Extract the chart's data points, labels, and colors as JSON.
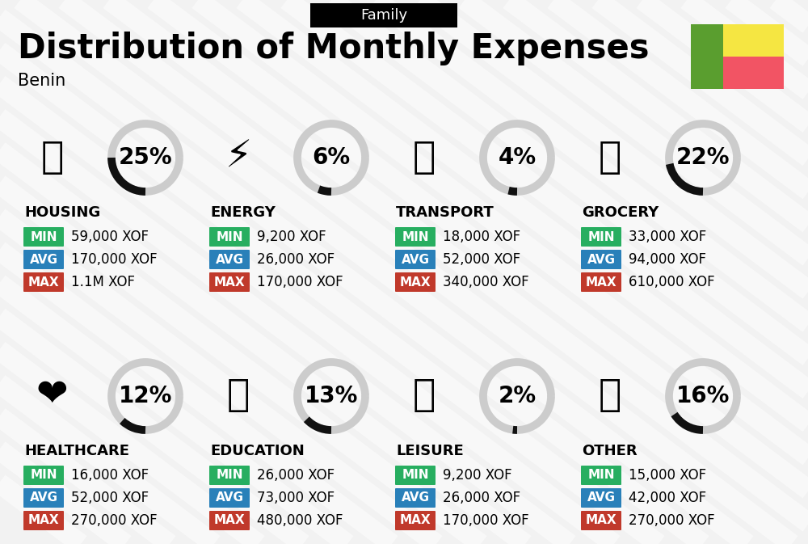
{
  "title": "Distribution of Monthly Expenses",
  "subtitle": "Benin",
  "header_label": "Family",
  "bg_color": "#f2f2f2",
  "categories": [
    {
      "name": "HOUSING",
      "pct": 25,
      "min_val": "59,000 XOF",
      "avg_val": "170,000 XOF",
      "max_val": "1.1M XOF"
    },
    {
      "name": "ENERGY",
      "pct": 6,
      "min_val": "9,200 XOF",
      "avg_val": "26,000 XOF",
      "max_val": "170,000 XOF"
    },
    {
      "name": "TRANSPORT",
      "pct": 4,
      "min_val": "18,000 XOF",
      "avg_val": "52,000 XOF",
      "max_val": "340,000 XOF"
    },
    {
      "name": "GROCERY",
      "pct": 22,
      "min_val": "33,000 XOF",
      "avg_val": "94,000 XOF",
      "max_val": "610,000 XOF"
    },
    {
      "name": "HEALTHCARE",
      "pct": 12,
      "min_val": "16,000 XOF",
      "avg_val": "52,000 XOF",
      "max_val": "270,000 XOF"
    },
    {
      "name": "EDUCATION",
      "pct": 13,
      "min_val": "26,000 XOF",
      "avg_val": "73,000 XOF",
      "max_val": "480,000 XOF"
    },
    {
      "name": "LEISURE",
      "pct": 2,
      "min_val": "9,200 XOF",
      "avg_val": "26,000 XOF",
      "max_val": "170,000 XOF"
    },
    {
      "name": "OTHER",
      "pct": 16,
      "min_val": "15,000 XOF",
      "avg_val": "42,000 XOF",
      "max_val": "270,000 XOF"
    }
  ],
  "min_color": "#27ae60",
  "avg_color": "#2980b9",
  "max_color": "#c0392b",
  "arc_color_filled": "#111111",
  "arc_color_empty": "#cccccc",
  "title_fontsize": 30,
  "subtitle_fontsize": 15,
  "header_fontsize": 13,
  "cat_fontsize": 13,
  "val_fontsize": 12,
  "pct_fontsize": 20,
  "flag_green": "#5a9e2f",
  "flag_yellow": "#f5e642",
  "flag_red": "#f25464",
  "stripe_color": "#ffffff",
  "stripe_alpha": 0.5,
  "stripe_lw": 18
}
